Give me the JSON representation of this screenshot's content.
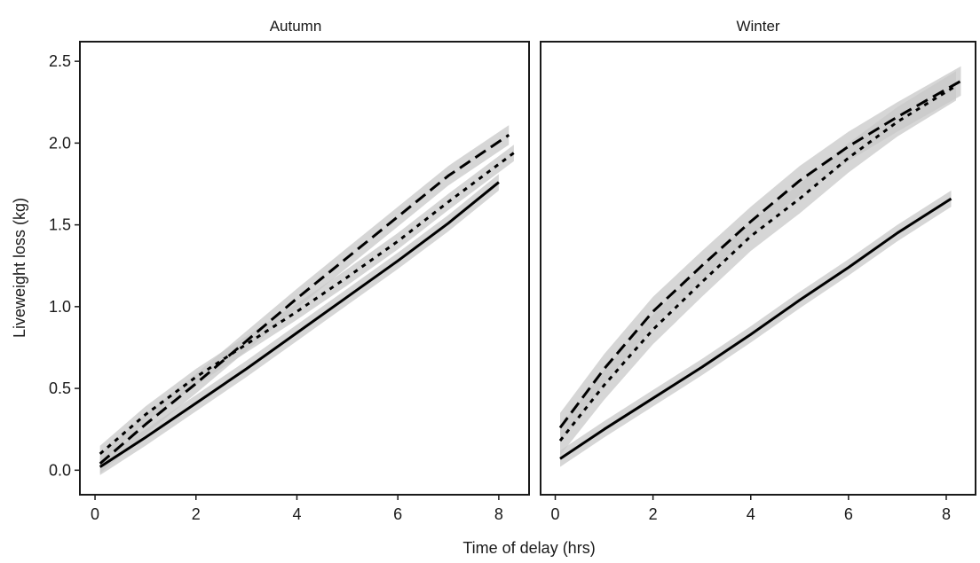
{
  "chart_data": {
    "type": "line",
    "xlabel": "Time of delay (hrs)",
    "ylabel": "Liveweight loss (kg)",
    "xlim": [
      -0.3,
      8.6
    ],
    "ylim": [
      -0.15,
      2.62
    ],
    "x_ticks": [
      0,
      2,
      4,
      6,
      8
    ],
    "y_ticks": [
      0.0,
      0.5,
      1.0,
      1.5,
      2.0,
      2.5
    ],
    "y_tick_labels": [
      "0.0",
      "0.5",
      "1.0",
      "1.5",
      "2.0",
      "2.5"
    ],
    "grid": false,
    "legend": "none",
    "colors": {
      "line": "#000000",
      "ribbon": "#c8c8c8",
      "frame": "#1a1a1a"
    },
    "panels": [
      {
        "title": "Autumn",
        "series": [
          {
            "style": "solid",
            "x": [
              0.1,
              1,
              2,
              3,
              4,
              5,
              6,
              7,
              8
            ],
            "y": [
              0.02,
              0.2,
              0.41,
              0.62,
              0.84,
              1.06,
              1.28,
              1.51,
              1.76
            ],
            "band": 0.05
          },
          {
            "style": "dashed",
            "x": [
              0.1,
              1,
              2,
              3,
              4,
              5,
              6,
              7,
              8.2
            ],
            "y": [
              0.04,
              0.28,
              0.53,
              0.79,
              1.05,
              1.3,
              1.55,
              1.8,
              2.05
            ],
            "band": 0.06
          },
          {
            "style": "dotted",
            "x": [
              0.1,
              1,
              2,
              3,
              4,
              5,
              6,
              7,
              8.3
            ],
            "y": [
              0.1,
              0.34,
              0.57,
              0.77,
              0.97,
              1.18,
              1.4,
              1.64,
              1.94
            ],
            "band": 0.05
          }
        ]
      },
      {
        "title": "Winter",
        "series": [
          {
            "style": "solid",
            "x": [
              0.1,
              1,
              2,
              3,
              4,
              5,
              6,
              7,
              8.1
            ],
            "y": [
              0.07,
              0.25,
              0.44,
              0.63,
              0.83,
              1.04,
              1.24,
              1.45,
              1.66
            ],
            "band": 0.05
          },
          {
            "style": "dashed",
            "x": [
              0.1,
              1,
              2,
              3,
              4,
              5,
              6,
              7,
              8.3
            ],
            "y": [
              0.26,
              0.62,
              0.97,
              1.25,
              1.52,
              1.77,
              1.98,
              2.16,
              2.38
            ],
            "band": 0.09
          },
          {
            "style": "dotted",
            "x": [
              0.1,
              1,
              2,
              3,
              4,
              5,
              6,
              7,
              8.2
            ],
            "y": [
              0.18,
              0.52,
              0.86,
              1.15,
              1.43,
              1.66,
              1.91,
              2.13,
              2.35
            ],
            "band": 0.09
          }
        ]
      }
    ]
  }
}
